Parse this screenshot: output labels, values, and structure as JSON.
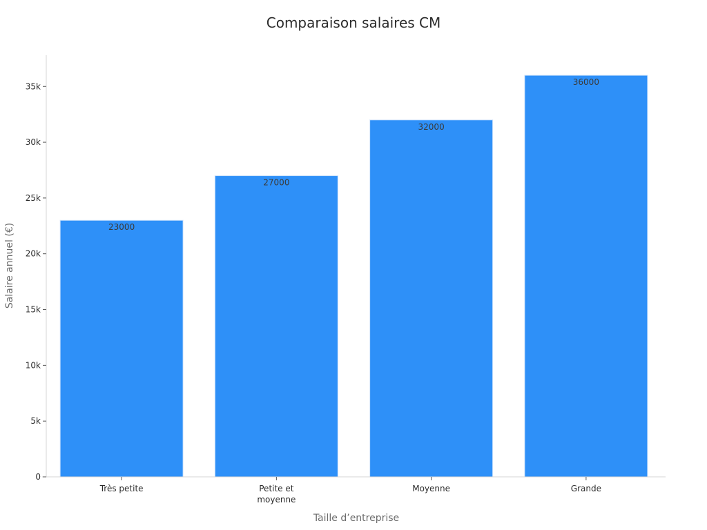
{
  "chart_data": {
    "type": "bar",
    "title": "Comparaison salaires CM",
    "xlabel": "Taille d’entreprise",
    "ylabel": "Salaire annuel (€)",
    "categories": [
      "Très petite",
      "Petite et moyenne",
      "Moyenne",
      "Grande"
    ],
    "category_lines": [
      [
        "Très petite"
      ],
      [
        "Petite et",
        "moyenne"
      ],
      [
        "Moyenne"
      ],
      [
        "Grande"
      ]
    ],
    "values": [
      23000,
      27000,
      32000,
      36000
    ],
    "data_labels": [
      "23000",
      "27000",
      "32000",
      "36000"
    ],
    "ylim": [
      0,
      37800
    ],
    "yticks": [
      0,
      5000,
      10000,
      15000,
      20000,
      25000,
      30000,
      35000
    ],
    "ytick_labels": [
      "0",
      "5k",
      "10k",
      "15k",
      "20k",
      "25k",
      "30k",
      "35k"
    ],
    "grid": false,
    "legend": "none",
    "colors": {
      "bar": "#2E90F8",
      "bar_edge": "#d0e4fb",
      "axis": "#d4d4d4",
      "text": "#2b2b2b",
      "axis_title": "#6b6b6b",
      "background": "#ffffff"
    }
  }
}
